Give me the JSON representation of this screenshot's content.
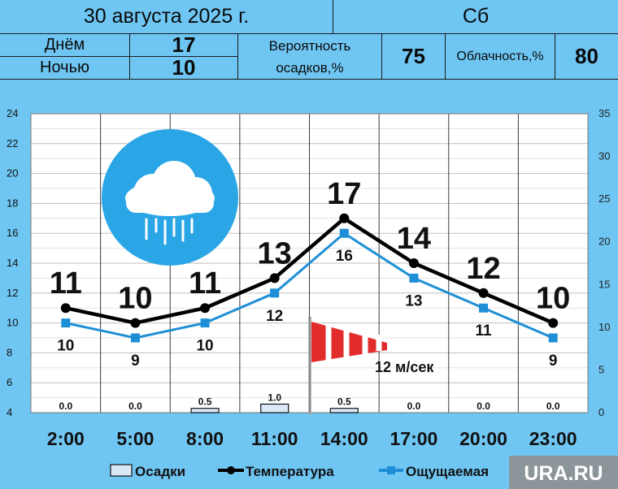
{
  "header": {
    "date": "30 августа 2025 г.",
    "weekday": "Сб",
    "day_label": "Днём",
    "day_value": "17",
    "night_label": "Ночью",
    "night_value": "10",
    "precip_label_1": "Вероятность",
    "precip_label_2": "осадков,%",
    "precip_value": "75",
    "cloud_label": "Облачность,%",
    "cloud_value": "80"
  },
  "wind": {
    "label": "12 м/сек"
  },
  "watermark": "URA.RU",
  "icons": {
    "weather": "rain-cloud-icon",
    "wind": "windsock-icon"
  },
  "colors": {
    "background": "#6fc6f3",
    "temperature": "#000000",
    "feels_like": "#1e8fd6",
    "precip_fill": "#dbe9f7"
  },
  "chart_data": {
    "type": "line",
    "categories": [
      "2:00",
      "5:00",
      "8:00",
      "11:00",
      "14:00",
      "17:00",
      "20:00",
      "23:00"
    ],
    "series": [
      {
        "name": "Температура",
        "axis": "left",
        "values": [
          11,
          10,
          11,
          13,
          17,
          14,
          12,
          10
        ]
      },
      {
        "name": "Ощущаемая",
        "axis": "left",
        "values": [
          10,
          9,
          10,
          12,
          16,
          13,
          11,
          9
        ]
      },
      {
        "name": "Осадки",
        "axis": "right",
        "type": "bar",
        "values": [
          0.0,
          0.0,
          0.5,
          1.0,
          0.5,
          0.0,
          0.0,
          0.0
        ],
        "labels": [
          "0.0",
          "0.0",
          "0.5",
          "1.0",
          "0.5",
          "0.0",
          "0.0",
          "0.0"
        ]
      }
    ],
    "y_left": {
      "min": 4,
      "max": 24,
      "ticks": [
        4,
        6,
        8,
        10,
        12,
        14,
        16,
        18,
        20,
        22,
        24
      ]
    },
    "y_right": {
      "min": 0,
      "max": 35,
      "ticks": [
        0,
        5,
        10,
        15,
        20,
        25,
        30,
        35
      ]
    },
    "legend": {
      "position": "bottom",
      "items": [
        "Осадки",
        "Температура",
        "Ощущаемая"
      ]
    },
    "grid": true
  }
}
